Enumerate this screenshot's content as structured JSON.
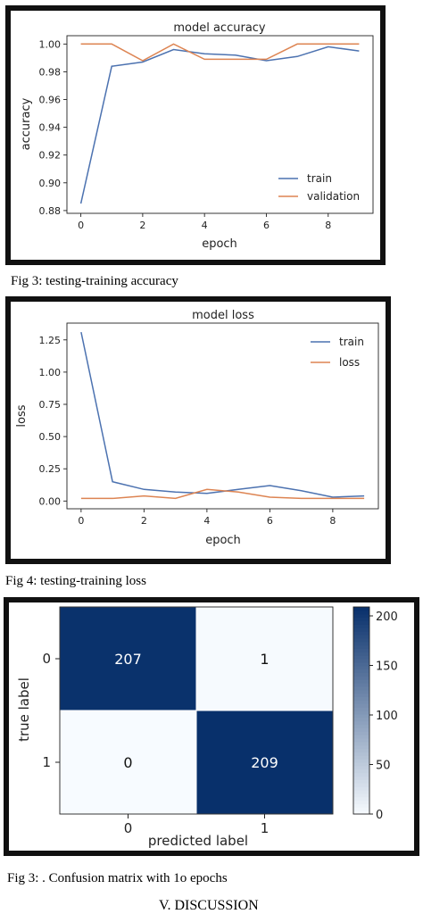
{
  "chart_data": [
    {
      "type": "line",
      "title": "model accuracy",
      "xlabel": "epoch",
      "ylabel": "accuracy",
      "x": [
        0,
        1,
        2,
        3,
        4,
        5,
        6,
        7,
        8,
        9
      ],
      "xticks": [
        "0",
        "2",
        "4",
        "6",
        "8"
      ],
      "yticks": [
        "0.88",
        "0.90",
        "0.92",
        "0.94",
        "0.96",
        "0.98",
        "1.00"
      ],
      "xlim": [
        -0.45,
        9.45
      ],
      "ylim": [
        0.878,
        1.006
      ],
      "series": [
        {
          "name": "train",
          "color": "#4c72b0",
          "values": [
            0.885,
            0.984,
            0.987,
            0.996,
            0.993,
            0.992,
            0.988,
            0.991,
            0.998,
            0.995
          ]
        },
        {
          "name": "validation",
          "color": "#dd8452",
          "values": [
            1.0,
            1.0,
            0.988,
            1.0,
            0.989,
            0.989,
            0.989,
            1.0,
            1.0,
            1.0
          ]
        }
      ],
      "legend": "lower-right",
      "grid": false
    },
    {
      "type": "line",
      "title": "model loss",
      "xlabel": "epoch",
      "ylabel": "loss",
      "x": [
        0,
        1,
        2,
        3,
        4,
        5,
        6,
        7,
        8,
        9
      ],
      "xticks": [
        "0",
        "2",
        "4",
        "6",
        "8"
      ],
      "yticks": [
        "0.00",
        "0.25",
        "0.50",
        "0.75",
        "1.00",
        "1.25"
      ],
      "xlim": [
        -0.45,
        9.45
      ],
      "ylim": [
        -0.06,
        1.38
      ],
      "series": [
        {
          "name": "train",
          "color": "#4c72b0",
          "values": [
            1.31,
            0.15,
            0.09,
            0.07,
            0.06,
            0.09,
            0.12,
            0.08,
            0.03,
            0.04
          ]
        },
        {
          "name": "loss",
          "color": "#dd8452",
          "values": [
            0.02,
            0.02,
            0.04,
            0.02,
            0.09,
            0.07,
            0.03,
            0.02,
            0.02,
            0.02
          ]
        }
      ],
      "legend": "upper-right",
      "grid": false
    },
    {
      "type": "heatmap",
      "title": "",
      "xlabel": "predicted label",
      "ylabel": "true label",
      "x_categories": [
        "0",
        "1"
      ],
      "y_categories": [
        "0",
        "1"
      ],
      "values": [
        [
          207,
          1
        ],
        [
          0,
          209
        ]
      ],
      "colorbar": {
        "min": 0,
        "max": 209,
        "ticks": [
          "0",
          "50",
          "100",
          "150",
          "200"
        ],
        "tick_values": [
          0,
          50,
          100,
          150,
          200
        ]
      },
      "colors": {
        "low": "#f7fbff",
        "high": "#08306b"
      }
    }
  ],
  "captions": {
    "fig3": "Fig 3: testing-training accuracy",
    "fig4": "Fig 4: testing-training loss",
    "fig5": "Fig 3: . Confusion matrix with 1o epochs"
  },
  "section_heading": "V.    DISCUSSION"
}
